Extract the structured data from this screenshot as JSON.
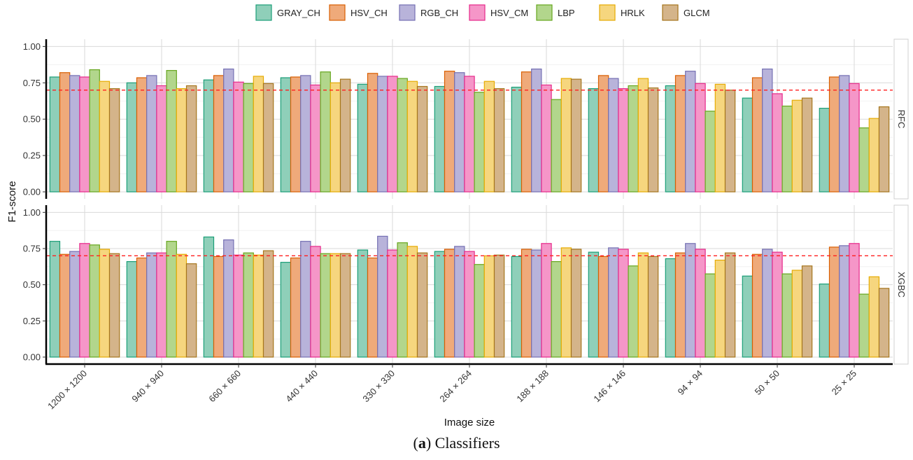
{
  "caption": {
    "prefix": "(",
    "letter": "a",
    "suffix": ") Classifiers"
  },
  "colors": {
    "GRAY_CH": {
      "fill": "#8fcfb9",
      "stroke": "#1b9e77"
    },
    "HSV_CH": {
      "fill": "#efaa7a",
      "stroke": "#d95f02"
    },
    "RGB_CH": {
      "fill": "#b8b3da",
      "stroke": "#7570b3"
    },
    "HSV_CM": {
      "fill": "#f596c8",
      "stroke": "#e7298a"
    },
    "LBP": {
      "fill": "#b2d68c",
      "stroke": "#66a61e"
    },
    "HRLK": {
      "fill": "#f6d67e",
      "stroke": "#e6ab02"
    },
    "GLCM": {
      "fill": "#d4b48a",
      "stroke": "#a6761d"
    },
    "threshold": "#ff2020"
  },
  "chart_data": {
    "type": "bar",
    "xlabel": "Image size",
    "ylabel": "F1-score",
    "ylim": [
      0,
      1.05
    ],
    "yticks": [
      "0.00",
      "0.25",
      "0.50",
      "0.75",
      "1.00"
    ],
    "threshold": 0.7,
    "legend_position": "top",
    "categories": [
      "1200 × 1200",
      "940 × 940",
      "660 × 660",
      "440 × 440",
      "330 × 330",
      "264 × 264",
      "188 × 188",
      "146 × 146",
      "94 × 94",
      "50 × 50",
      "25 × 25"
    ],
    "series_names": [
      "GRAY_CH",
      "HSV_CH",
      "RGB_CH",
      "HSV_CM",
      "LBP",
      "HRLK",
      "GLCM"
    ],
    "panels": [
      {
        "label": "RFC",
        "series": [
          {
            "name": "GRAY_CH",
            "values": [
              0.79,
              0.75,
              0.77,
              0.785,
              0.74,
              0.725,
              0.72,
              0.71,
              0.73,
              0.645,
              0.575
            ]
          },
          {
            "name": "HSV_CH",
            "values": [
              0.82,
              0.785,
              0.8,
              0.79,
              0.815,
              0.83,
              0.825,
              0.8,
              0.8,
              0.785,
              0.79
            ]
          },
          {
            "name": "RGB_CH",
            "values": [
              0.8,
              0.8,
              0.845,
              0.8,
              0.795,
              0.82,
              0.845,
              0.78,
              0.83,
              0.845,
              0.8
            ]
          },
          {
            "name": "HSV_CM",
            "values": [
              0.79,
              0.73,
              0.755,
              0.735,
              0.795,
              0.795,
              0.735,
              0.71,
              0.745,
              0.675,
              0.745
            ]
          },
          {
            "name": "LBP",
            "values": [
              0.84,
              0.835,
              0.745,
              0.825,
              0.78,
              0.685,
              0.635,
              0.73,
              0.555,
              0.59,
              0.44
            ]
          },
          {
            "name": "HRLK",
            "values": [
              0.76,
              0.71,
              0.795,
              0.75,
              0.76,
              0.76,
              0.78,
              0.78,
              0.74,
              0.63,
              0.505
            ]
          },
          {
            "name": "GLCM",
            "values": [
              0.71,
              0.73,
              0.745,
              0.775,
              0.725,
              0.71,
              0.775,
              0.715,
              0.7,
              0.645,
              0.585
            ]
          }
        ]
      },
      {
        "label": "XGBC",
        "series": [
          {
            "name": "GRAY_CH",
            "values": [
              0.8,
              0.66,
              0.83,
              0.655,
              0.74,
              0.73,
              0.695,
              0.725,
              0.68,
              0.56,
              0.505
            ]
          },
          {
            "name": "HSV_CH",
            "values": [
              0.71,
              0.685,
              0.695,
              0.685,
              0.685,
              0.745,
              0.745,
              0.695,
              0.72,
              0.71,
              0.76
            ]
          },
          {
            "name": "RGB_CH",
            "values": [
              0.73,
              0.72,
              0.81,
              0.8,
              0.835,
              0.765,
              0.74,
              0.755,
              0.785,
              0.745,
              0.77
            ]
          },
          {
            "name": "HSV_CM",
            "values": [
              0.785,
              0.72,
              0.705,
              0.765,
              0.74,
              0.73,
              0.785,
              0.745,
              0.745,
              0.725,
              0.785
            ]
          },
          {
            "name": "LBP",
            "values": [
              0.775,
              0.8,
              0.72,
              0.715,
              0.79,
              0.64,
              0.66,
              0.63,
              0.575,
              0.575,
              0.435
            ]
          },
          {
            "name": "HRLK",
            "values": [
              0.745,
              0.71,
              0.705,
              0.715,
              0.765,
              0.7,
              0.755,
              0.72,
              0.67,
              0.6,
              0.555
            ]
          },
          {
            "name": "GLCM",
            "values": [
              0.715,
              0.645,
              0.735,
              0.715,
              0.72,
              0.705,
              0.745,
              0.695,
              0.72,
              0.63,
              0.475
            ]
          }
        ]
      }
    ]
  }
}
